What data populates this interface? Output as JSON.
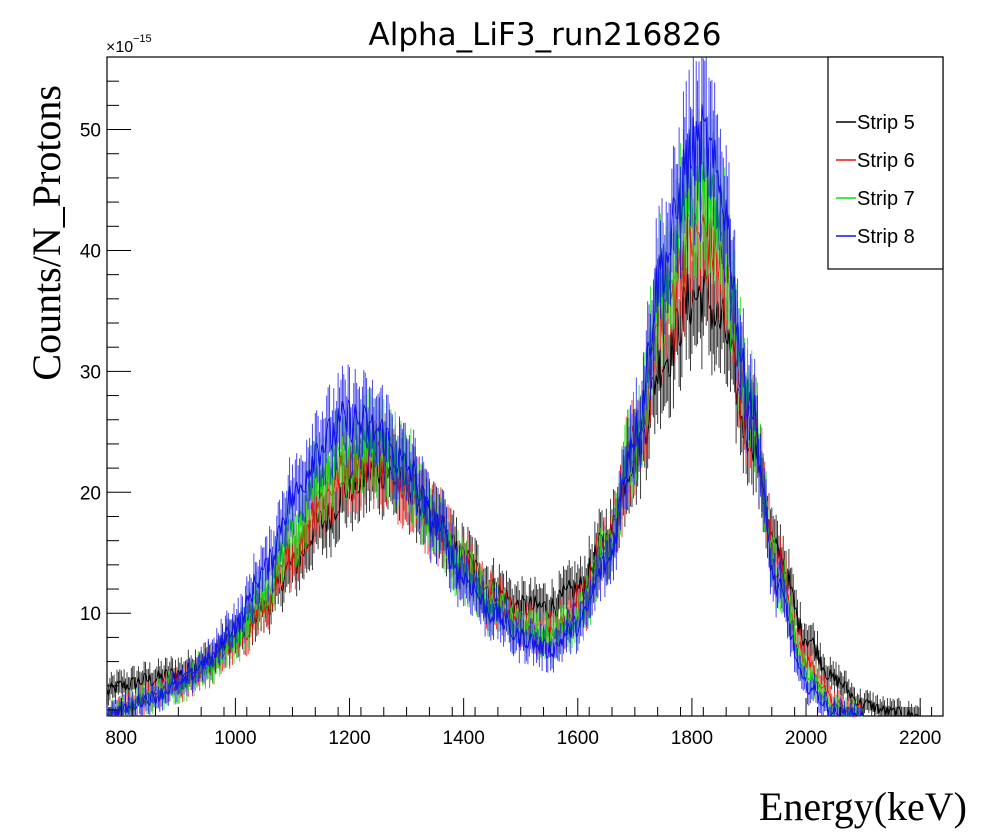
{
  "chart_data": {
    "type": "line",
    "title": "Alpha_LiF3_run216826",
    "xlabel": "Energy(keV)",
    "ylabel": "Counts/N_Protons",
    "y_multiplier": "×10",
    "y_multiplier_exponent": "−15",
    "xlim": [
      775,
      2240
    ],
    "ylim": [
      1.5,
      56
    ],
    "xticks": [
      800,
      1000,
      1200,
      1400,
      1600,
      1800,
      2000,
      2200
    ],
    "xtick_labels": [
      "800",
      "1000",
      "1200",
      "1400",
      "1600",
      "1800",
      "2000",
      "2200"
    ],
    "yticks": [
      10,
      20,
      30,
      40,
      50
    ],
    "ytick_labels": [
      "10",
      "20",
      "30",
      "40",
      "50"
    ],
    "grid": false,
    "legend_position": "top-right",
    "series": [
      {
        "name": "Strip 5",
        "color": "#000000",
        "x": [
          775,
          800,
          850,
          900,
          950,
          1000,
          1050,
          1100,
          1150,
          1200,
          1250,
          1300,
          1350,
          1400,
          1450,
          1500,
          1550,
          1600,
          1650,
          1700,
          1750,
          1800,
          1820,
          1850,
          1900,
          1950,
          2000,
          2050,
          2100,
          2150,
          2200
        ],
        "values": [
          3.5,
          4.0,
          4.5,
          5.0,
          6.0,
          8.0,
          10.5,
          14.0,
          17.5,
          20.5,
          22.0,
          20.5,
          17.5,
          14.5,
          12.0,
          10.5,
          10.5,
          12.0,
          16.0,
          23.0,
          31.0,
          36.0,
          36.5,
          34.0,
          25.0,
          15.0,
          8.0,
          4.5,
          2.5,
          1.8,
          1.5
        ]
      },
      {
        "name": "Strip 6",
        "color": "#ee1111",
        "x": [
          775,
          800,
          850,
          900,
          950,
          1000,
          1050,
          1100,
          1150,
          1200,
          1250,
          1300,
          1350,
          1400,
          1450,
          1500,
          1550,
          1600,
          1650,
          1700,
          1750,
          1800,
          1820,
          1850,
          1900,
          1950,
          2000,
          2050,
          2100
        ],
        "values": [
          1.5,
          2.0,
          3.0,
          4.0,
          5.5,
          7.5,
          10.5,
          15.0,
          19.5,
          22.5,
          23.0,
          21.0,
          17.5,
          14.0,
          11.0,
          9.0,
          8.5,
          10.0,
          15.0,
          24.0,
          35.0,
          41.0,
          41.5,
          39.0,
          27.0,
          14.0,
          6.0,
          2.5,
          1.5
        ]
      },
      {
        "name": "Strip 7",
        "color": "#11dd11",
        "x": [
          775,
          800,
          850,
          900,
          950,
          1000,
          1050,
          1100,
          1150,
          1200,
          1250,
          1300,
          1350,
          1400,
          1450,
          1500,
          1550,
          1600,
          1650,
          1700,
          1750,
          1800,
          1820,
          1850,
          1900,
          1950,
          2000,
          2050,
          2100
        ],
        "values": [
          1.5,
          2.0,
          3.0,
          4.0,
          5.5,
          8.0,
          11.5,
          17.0,
          21.5,
          24.0,
          24.0,
          21.5,
          17.5,
          13.5,
          10.5,
          8.5,
          8.0,
          9.5,
          14.5,
          24.5,
          37.0,
          44.5,
          45.0,
          42.0,
          28.0,
          13.0,
          5.0,
          2.0,
          1.5
        ]
      },
      {
        "name": "Strip 8",
        "color": "#1111ee",
        "x": [
          775,
          800,
          850,
          900,
          950,
          1000,
          1050,
          1100,
          1150,
          1200,
          1250,
          1300,
          1350,
          1400,
          1450,
          1500,
          1550,
          1600,
          1650,
          1700,
          1750,
          1800,
          1820,
          1850,
          1900,
          1950,
          2000,
          2050,
          2100
        ],
        "values": [
          1.5,
          2.0,
          3.0,
          4.0,
          6.0,
          9.0,
          13.5,
          19.5,
          24.0,
          26.0,
          25.0,
          22.0,
          17.5,
          13.0,
          10.0,
          8.0,
          7.0,
          9.0,
          14.0,
          25.0,
          39.0,
          48.0,
          49.0,
          45.0,
          28.0,
          12.0,
          4.0,
          1.8,
          1.5
        ]
      }
    ]
  }
}
